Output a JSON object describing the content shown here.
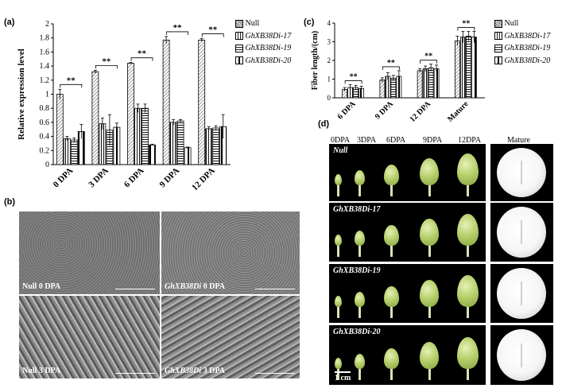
{
  "panels": {
    "a": "(a)",
    "b": "(b)",
    "c": "(c)",
    "d": "(d)"
  },
  "legend": {
    "null": "Null",
    "l17": "GhXB38Di-17",
    "l19": "GhXB38Di-19",
    "l20": "GhXB38Di-20"
  },
  "significance": "**",
  "chart_data": [
    {
      "type": "bar",
      "panel": "a",
      "categories": [
        "0 DPA",
        "3 DPA",
        "6 DPA",
        "9 DPA",
        "12 DPA"
      ],
      "ylabel": "Relative expression level",
      "ylim": [
        0,
        2
      ],
      "yticks": [
        0,
        0.2,
        0.4,
        0.6,
        0.8,
        1,
        1.2,
        1.4,
        1.6,
        1.8,
        2
      ],
      "series": [
        {
          "name": "Null",
          "values": [
            1.0,
            1.32,
            1.44,
            1.77,
            1.77
          ],
          "errors": [
            0.07,
            0.02,
            0.01,
            0.05,
            0.02
          ]
        },
        {
          "name": "GhXB38Di-17",
          "values": [
            0.37,
            0.58,
            0.8,
            0.6,
            0.51
          ],
          "errors": [
            0.03,
            0.08,
            0.06,
            0.04,
            0.03
          ]
        },
        {
          "name": "GhXB38Di-19",
          "values": [
            0.35,
            0.49,
            0.8,
            0.62,
            0.52
          ],
          "errors": [
            0.03,
            0.22,
            0.06,
            0.02,
            0.03
          ]
        },
        {
          "name": "GhXB38Di-20",
          "values": [
            0.47,
            0.53,
            0.28,
            0.24,
            0.54
          ],
          "errors": [
            0.1,
            0.06,
            0.01,
            0.01,
            0.17
          ]
        }
      ],
      "annotations": [
        "**",
        "**",
        "**",
        "**",
        "**"
      ]
    },
    {
      "type": "bar",
      "panel": "c",
      "categories": [
        "6 DPA",
        "9 DPA",
        "12 DPA",
        "Mature"
      ],
      "ylabel": "Fiber length/(cm)",
      "ylim": [
        0,
        4
      ],
      "yticks": [
        0,
        1,
        2,
        3,
        4
      ],
      "series": [
        {
          "name": "Null",
          "values": [
            0.45,
            0.95,
            1.45,
            3.05
          ],
          "errors": [
            0.1,
            0.12,
            0.1,
            0.25
          ]
        },
        {
          "name": "GhXB38Di-17",
          "values": [
            0.55,
            1.15,
            1.55,
            3.25
          ],
          "errors": [
            0.15,
            0.2,
            0.15,
            0.3
          ]
        },
        {
          "name": "GhXB38Di-19",
          "values": [
            0.55,
            1.05,
            1.6,
            3.3
          ],
          "errors": [
            0.12,
            0.15,
            0.2,
            0.25
          ]
        },
        {
          "name": "GhXB38Di-20",
          "values": [
            0.5,
            1.15,
            1.55,
            3.25
          ],
          "errors": [
            0.12,
            0.3,
            0.2,
            0.3
          ]
        }
      ],
      "annotations": [
        "**",
        "**",
        "**",
        "**"
      ]
    }
  ],
  "panel_b": {
    "captions": [
      {
        "a": "Null 0 DPA"
      },
      {
        "em": "GhXB38Di",
        "b": " 0 DPA"
      },
      {
        "a": "Null 3 DPA"
      },
      {
        "em": "GhXB38Di",
        "b": " 3 DPA"
      }
    ]
  },
  "panel_d": {
    "stages": [
      "0DPA",
      "3DPA",
      "6DPA",
      "9DPA",
      "12DPA",
      "Mature"
    ],
    "rows": [
      "Null",
      "GhXB38Di-17",
      "GhXB38Di-19",
      "GhXB38Di-20"
    ],
    "scale": "1 cm"
  }
}
